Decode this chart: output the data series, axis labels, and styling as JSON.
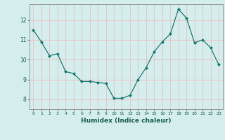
{
  "x": [
    0,
    1,
    2,
    3,
    4,
    5,
    6,
    7,
    8,
    9,
    10,
    11,
    12,
    13,
    14,
    15,
    16,
    17,
    18,
    19,
    20,
    21,
    22,
    23
  ],
  "y": [
    11.5,
    10.9,
    10.2,
    10.3,
    9.4,
    9.3,
    8.9,
    8.9,
    8.85,
    8.8,
    8.05,
    8.05,
    8.2,
    9.0,
    9.6,
    10.4,
    10.9,
    11.3,
    12.55,
    12.1,
    10.85,
    11.0,
    10.6,
    9.75
  ],
  "xlabel": "Humidex (Indice chaleur)",
  "background_color": "#d4eeee",
  "grid_color": "#e8c8c8",
  "line_color": "#1a7a6e",
  "marker_color": "#1a7a6e",
  "ylim": [
    7.5,
    12.8
  ],
  "yticks": [
    8,
    9,
    10,
    11,
    12
  ],
  "xticks": [
    0,
    1,
    2,
    3,
    4,
    5,
    6,
    7,
    8,
    9,
    10,
    11,
    12,
    13,
    14,
    15,
    16,
    17,
    18,
    19,
    20,
    21,
    22,
    23
  ]
}
